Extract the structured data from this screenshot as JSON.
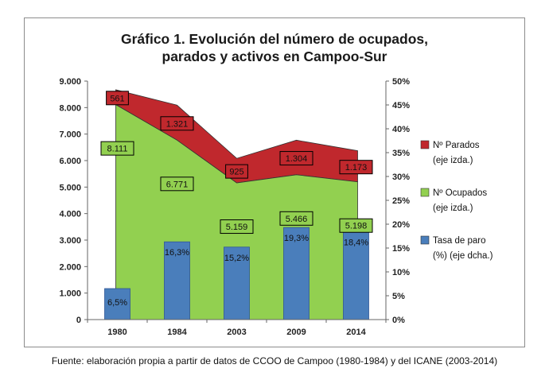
{
  "chart_data": {
    "type": "area",
    "title_line1": "Gráfico 1. Evolución del número de ocupados,",
    "title_line2": "parados y activos en Campoo-Sur",
    "categories": [
      "1980",
      "1984",
      "2003",
      "2009",
      "2014"
    ],
    "ylim_left": [
      0,
      9000
    ],
    "y_ticks_left": [
      "0",
      "1.000",
      "2.000",
      "3.000",
      "4.000",
      "5.000",
      "6.000",
      "7.000",
      "8.000",
      "9.000"
    ],
    "ylim_right": [
      0,
      50
    ],
    "y_ticks_right": [
      "0%",
      "5%",
      "10%",
      "15%",
      "20%",
      "25%",
      "30%",
      "35%",
      "40%",
      "45%",
      "50%"
    ],
    "series": [
      {
        "name": "Nº Ocupados (eje izda.)",
        "kind": "area",
        "axis": "left",
        "color": "#92d050",
        "values": [
          8111,
          6771,
          5159,
          5466,
          5198
        ],
        "labels": [
          "8.111",
          "6.771",
          "5.159",
          "5.466",
          "5.198"
        ]
      },
      {
        "name": "Nº Parados (eje izda.)",
        "kind": "stacked-area",
        "axis": "left",
        "color": "#c0282d",
        "values": [
          561,
          1321,
          925,
          1304,
          1173
        ],
        "labels": [
          "561",
          "1.321",
          "925",
          "1.304",
          "1.173"
        ]
      },
      {
        "name": "Tasa de paro (%) (eje dcha.)",
        "kind": "bar",
        "axis": "right",
        "color": "#4a7ebb",
        "values": [
          6.5,
          16.3,
          15.2,
          19.3,
          18.4
        ],
        "labels": [
          "6,5%",
          "16,3%",
          "15,2%",
          "19,3%",
          "18,4%"
        ]
      }
    ],
    "legend": [
      {
        "line1": "Nº Parados",
        "line2": "(eje izda.)",
        "color": "#c0282d"
      },
      {
        "line1": "Nº Ocupados",
        "line2": "(eje izda.)",
        "color": "#92d050"
      },
      {
        "line1": "Tasa de paro",
        "line2": "(%) (eje dcha.)",
        "color": "#4a7ebb"
      }
    ],
    "legend_position": "right",
    "grid": false
  },
  "source_text": "Fuente: elaboración propia a partir de datos de CCOO de Campoo (1980-1984)  y del ICANE (2003-2014)"
}
